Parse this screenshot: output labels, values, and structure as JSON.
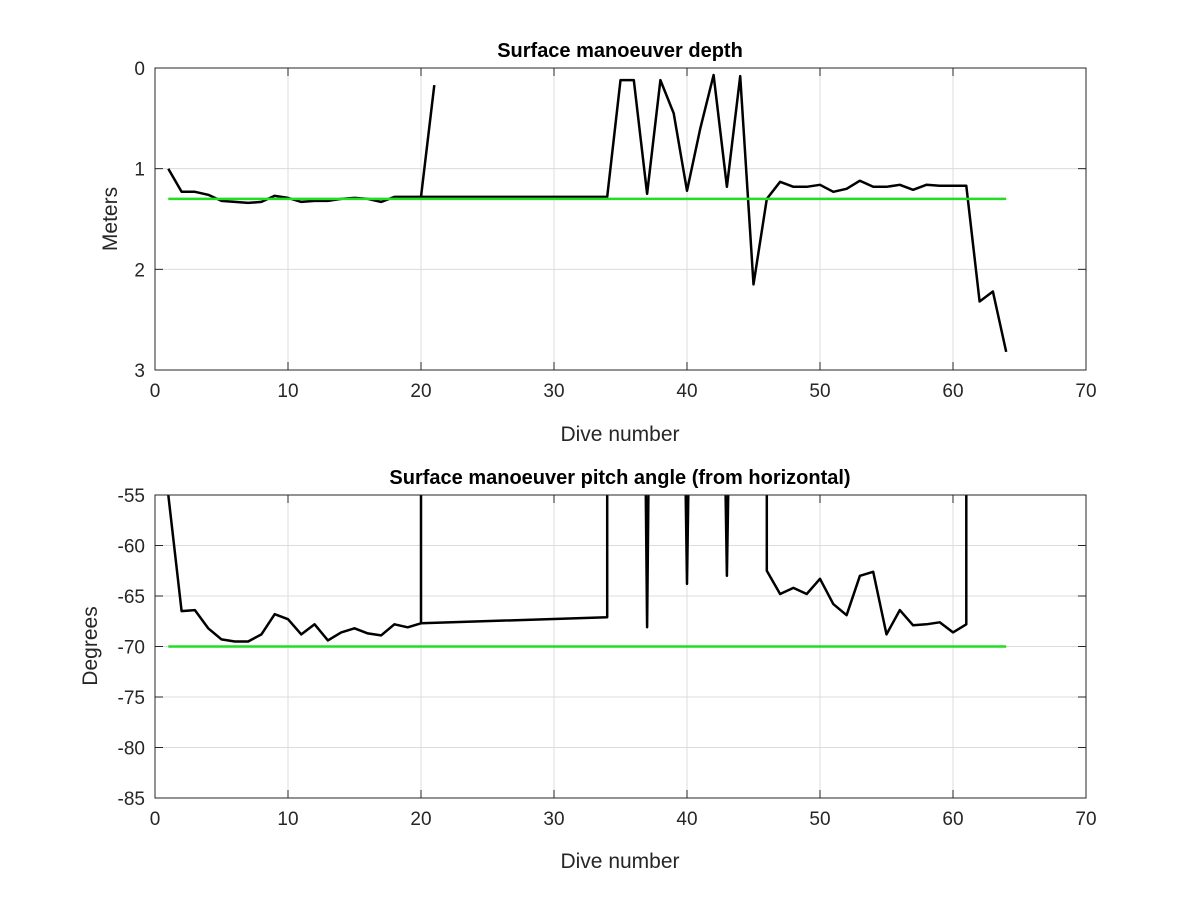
{
  "chart_data": [
    {
      "type": "line",
      "title": "Surface manoeuver depth",
      "xlabel": "Dive number",
      "ylabel": "Meters",
      "xlim": [
        0,
        70
      ],
      "ylim": [
        0,
        3
      ],
      "y_reversed": true,
      "grid": true,
      "xticks": [
        0,
        10,
        20,
        30,
        40,
        50,
        60,
        70
      ],
      "yticks": [
        0,
        1,
        2,
        3
      ],
      "series": [
        {
          "color": "#000000",
          "x": [
            1,
            2,
            3,
            4,
            5,
            6,
            7,
            8,
            9,
            10,
            11,
            12,
            13,
            14,
            15,
            16,
            17,
            18,
            19,
            20,
            21
          ],
          "y": [
            1.0,
            1.23,
            1.23,
            1.26,
            1.32,
            1.33,
            1.34,
            1.33,
            1.27,
            1.29,
            1.33,
            1.32,
            1.32,
            1.3,
            1.29,
            1.3,
            1.33,
            1.28,
            1.28,
            1.28,
            0.17
          ]
        },
        {
          "color": "#000000",
          "x": [
            20,
            34,
            35,
            36,
            37,
            38,
            39,
            40,
            41,
            42,
            43,
            44,
            45,
            46,
            47,
            48,
            49,
            50,
            51,
            52,
            53,
            54,
            55,
            56,
            57,
            58,
            59,
            60,
            61,
            62,
            63,
            64
          ],
          "y": [
            1.28,
            1.28,
            0.12,
            0.12,
            1.25,
            0.12,
            0.45,
            1.22,
            0.6,
            0.07,
            1.18,
            0.08,
            2.15,
            1.3,
            1.13,
            1.18,
            1.18,
            1.16,
            1.23,
            1.2,
            1.12,
            1.18,
            1.18,
            1.16,
            1.21,
            1.16,
            1.17,
            1.17,
            1.17,
            2.32,
            2.22,
            2.82
          ]
        },
        {
          "color": "#22dd22",
          "x": [
            1,
            64
          ],
          "y": [
            1.3,
            1.3
          ]
        }
      ]
    },
    {
      "type": "line",
      "title": "Surface manoeuver pitch angle (from horizontal)",
      "xlabel": "Dive number",
      "ylabel": "Degrees",
      "xlim": [
        0,
        70
      ],
      "ylim": [
        -85,
        -55
      ],
      "grid": true,
      "xticks": [
        0,
        10,
        20,
        30,
        40,
        50,
        60,
        70
      ],
      "yticks": [
        -55,
        -60,
        -65,
        -70,
        -75,
        -80,
        -85
      ],
      "series": [
        {
          "color": "#000000",
          "x": [
            1,
            2,
            3,
            4,
            5,
            6,
            7,
            8,
            9,
            10,
            11,
            12,
            13,
            14,
            15,
            16,
            17,
            18,
            19,
            20,
            20,
            20,
            34,
            34,
            34
          ],
          "y": [
            -55,
            -66.5,
            -66.4,
            -68.2,
            -69.3,
            -69.5,
            -69.5,
            -68.8,
            -66.8,
            -67.3,
            -68.8,
            -67.8,
            -69.4,
            -68.6,
            -68.2,
            -68.7,
            -68.9,
            -67.8,
            -68.1,
            -67.7,
            -55,
            -67.7,
            -67.1,
            -67.1,
            -55
          ]
        },
        {
          "color": "#000000",
          "x": [
            36.9,
            37,
            37.1
          ],
          "y": [
            -55,
            -68.1,
            -55
          ]
        },
        {
          "color": "#000000",
          "x": [
            39.9,
            40,
            40.1
          ],
          "y": [
            -55,
            -63.8,
            -55
          ]
        },
        {
          "color": "#000000",
          "x": [
            42.9,
            43,
            43.1
          ],
          "y": [
            -55,
            -63.0,
            -55
          ]
        },
        {
          "color": "#000000",
          "x": [
            46,
            46,
            47,
            48,
            49,
            50,
            51,
            52,
            53,
            54,
            55,
            56,
            57,
            58,
            59,
            60,
            61,
            61
          ],
          "y": [
            -55,
            -62.5,
            -64.8,
            -64.2,
            -64.8,
            -63.3,
            -65.8,
            -66.9,
            -63.0,
            -62.6,
            -68.8,
            -66.4,
            -67.9,
            -67.8,
            -67.6,
            -68.6,
            -67.8,
            -55
          ]
        },
        {
          "color": "#22dd22",
          "x": [
            1,
            64
          ],
          "y": [
            -70,
            -70
          ]
        }
      ]
    }
  ]
}
